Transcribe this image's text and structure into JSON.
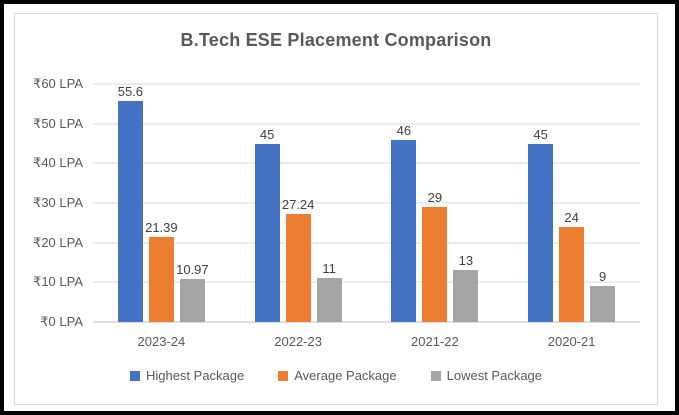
{
  "chart_data": {
    "type": "bar",
    "title": "B.Tech ESE Placement Comparison",
    "categories": [
      "2023-24",
      "2022-23",
      "2021-22",
      "2020-21"
    ],
    "series": [
      {
        "name": "Highest Package",
        "color": "#4472C4",
        "values": [
          55.6,
          45,
          46,
          45
        ],
        "labels": [
          "55.6",
          "45",
          "46",
          "45"
        ]
      },
      {
        "name": "Average Package",
        "color": "#ED7D31",
        "values": [
          21.39,
          27.24,
          29,
          24
        ],
        "labels": [
          "21.39",
          "27.24",
          "29",
          "24"
        ]
      },
      {
        "name": "Lowest Package",
        "color": "#A5A5A5",
        "values": [
          10.97,
          11,
          13,
          9
        ],
        "labels": [
          "10.97",
          "11",
          "13",
          "9"
        ]
      }
    ],
    "xlabel": "",
    "ylabel": "",
    "ylim": [
      0,
      60
    ],
    "y_ticks": [
      {
        "value": 0,
        "label": "₹0 LPA"
      },
      {
        "value": 10,
        "label": "₹10 LPA"
      },
      {
        "value": 20,
        "label": "₹20 LPA"
      },
      {
        "value": 30,
        "label": "₹30 LPA"
      },
      {
        "value": 40,
        "label": "₹40 LPA"
      },
      {
        "value": 50,
        "label": "₹50 LPA"
      },
      {
        "value": 60,
        "label": "₹60 LPA"
      }
    ],
    "grid": true,
    "legend_position": "bottom"
  },
  "colors": {
    "title_text": "#595959",
    "axis_text": "#595959",
    "data_label_text": "#404040",
    "gridline": "#d9d9d9",
    "axis_line": "#bfbfbf",
    "chart_border": "#d9d9d9",
    "outer_border": "#000000",
    "background": "#ffffff"
  }
}
